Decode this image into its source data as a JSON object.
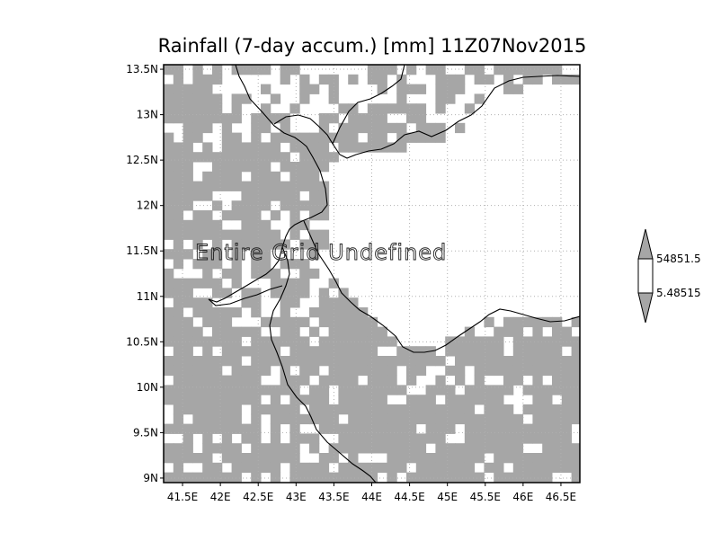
{
  "title": "Rainfall (7-day accum.) [mm] 11Z07Nov2015",
  "overlay_text": "Entire Grid Undefined",
  "x_ticks": [
    "41.5E",
    "42E",
    "42.5E",
    "43E",
    "43.5E",
    "44E",
    "44.5E",
    "45E",
    "45.5E",
    "46E",
    "46.5E"
  ],
  "y_ticks": [
    "13.5N",
    "13N",
    "12.5N",
    "12N",
    "11.5N",
    "11N",
    "10.5N",
    "10N",
    "9.5N",
    "9N"
  ],
  "colorbar": {
    "upper_label": "54851.5",
    "lower_label": "5.48515",
    "upper_color": "#a6a6a6",
    "middle_color": "#ffffff",
    "lower_color": "#a6a6a6"
  },
  "colors": {
    "land_fill": "#a6a6a6",
    "water_fill": "#ffffff",
    "grid": "#b0b0b0",
    "border": "#000000"
  }
}
